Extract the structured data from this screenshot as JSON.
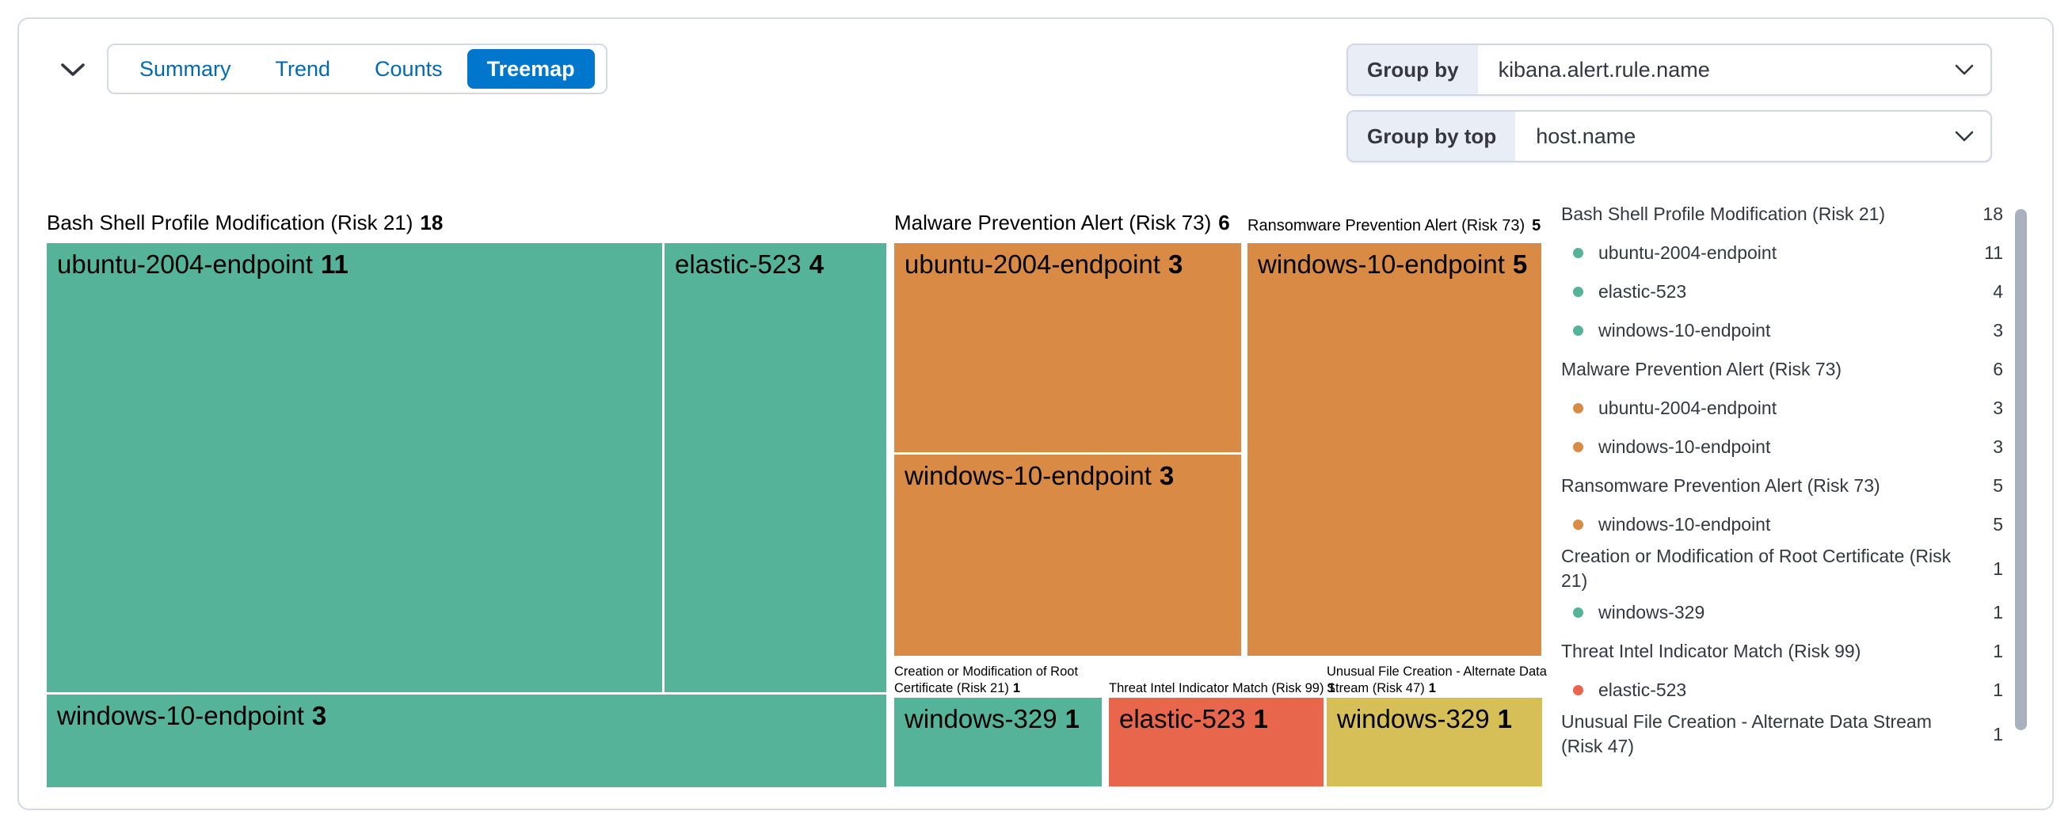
{
  "header": {
    "collapse_icon": "chevron-down",
    "tabs": [
      {
        "label": "Summary",
        "selected": false
      },
      {
        "label": "Trend",
        "selected": false
      },
      {
        "label": "Counts",
        "selected": false
      },
      {
        "label": "Treemap",
        "selected": true
      }
    ],
    "group_by": {
      "label": "Group by",
      "value": "kibana.alert.rule.name"
    },
    "group_by_top": {
      "label": "Group by top",
      "value": "host.name"
    }
  },
  "colors": {
    "teal": "#54B399",
    "orange": "#D98B45",
    "red": "#E7664C",
    "yellow": "#D6BF57",
    "selected_tab_bg": "#0077CC",
    "tab_text": "#006BB4",
    "panel_border": "#D3DAE6",
    "text": "#343741",
    "scrollbar_thumb": "#A9B1BE"
  },
  "chart_data": {
    "type": "treemap",
    "group_by_field": "kibana.alert.rule.name",
    "group_by_top_field": "host.name",
    "groups": [
      {
        "name": "Bash Shell Profile Modification (Risk 21)",
        "total": 18,
        "color": "#54B399",
        "children": [
          {
            "name": "ubuntu-2004-endpoint",
            "value": 11
          },
          {
            "name": "elastic-523",
            "value": 4
          },
          {
            "name": "windows-10-endpoint",
            "value": 3
          }
        ]
      },
      {
        "name": "Malware Prevention Alert (Risk 73)",
        "total": 6,
        "color": "#D98B45",
        "children": [
          {
            "name": "ubuntu-2004-endpoint",
            "value": 3
          },
          {
            "name": "windows-10-endpoint",
            "value": 3
          }
        ]
      },
      {
        "name": "Ransomware Prevention Alert (Risk 73)",
        "total": 5,
        "color": "#D98B45",
        "children": [
          {
            "name": "windows-10-endpoint",
            "value": 5
          }
        ]
      },
      {
        "name": "Creation or Modification of Root Certificate (Risk 21)",
        "total": 1,
        "color": "#54B399",
        "children": [
          {
            "name": "windows-329",
            "value": 1
          }
        ]
      },
      {
        "name": "Threat Intel Indicator Match (Risk 99)",
        "total": 1,
        "color": "#E7664C",
        "children": [
          {
            "name": "elastic-523",
            "value": 1
          }
        ]
      },
      {
        "name": "Unusual File Creation - Alternate Data Stream (Risk 47)",
        "total": 1,
        "color": "#D6BF57",
        "children": [
          {
            "name": "windows-329",
            "value": 1
          }
        ]
      }
    ]
  },
  "legend": {
    "rows": [
      {
        "type": "parent",
        "label": "Bash Shell Profile Modification (Risk 21)",
        "value": "18"
      },
      {
        "type": "child",
        "color": "#54B399",
        "label": "ubuntu-2004-endpoint",
        "value": "11"
      },
      {
        "type": "child",
        "color": "#54B399",
        "label": "elastic-523",
        "value": "4"
      },
      {
        "type": "child",
        "color": "#54B399",
        "label": "windows-10-endpoint",
        "value": "3"
      },
      {
        "type": "parent",
        "label": "Malware Prevention Alert (Risk 73)",
        "value": "6"
      },
      {
        "type": "child",
        "color": "#D98B45",
        "label": "ubuntu-2004-endpoint",
        "value": "3"
      },
      {
        "type": "child",
        "color": "#D98B45",
        "label": "windows-10-endpoint",
        "value": "3"
      },
      {
        "type": "parent",
        "label": "Ransomware Prevention Alert (Risk 73)",
        "value": "5"
      },
      {
        "type": "child",
        "color": "#D98B45",
        "label": "windows-10-endpoint",
        "value": "5"
      },
      {
        "type": "parent",
        "label": "Creation or Modification of Root Certificate (Risk 21)",
        "value": "1"
      },
      {
        "type": "child",
        "color": "#54B399",
        "label": "windows-329",
        "value": "1"
      },
      {
        "type": "parent",
        "label": "Threat Intel Indicator Match (Risk 99)",
        "value": "1"
      },
      {
        "type": "child",
        "color": "#E7664C",
        "label": "elastic-523",
        "value": "1"
      },
      {
        "type": "parent",
        "label": "Unusual File Creation - Alternate Data Stream (Risk 47)",
        "value": "1"
      }
    ]
  }
}
